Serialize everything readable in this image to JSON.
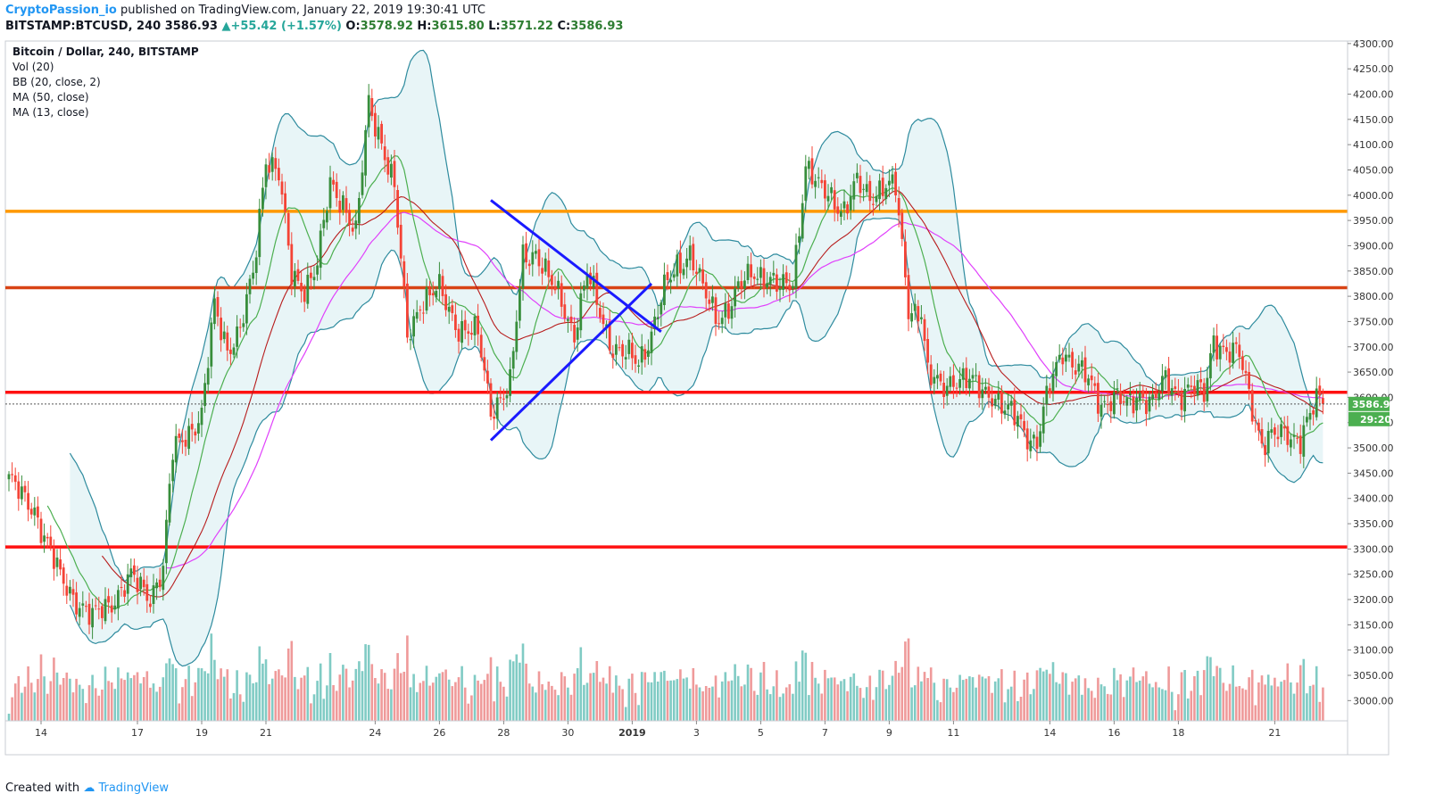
{
  "header": {
    "author": "CryptoPassion_io",
    "published": "published on TradingView.com, January 22, 2019 19:30:41 UTC",
    "symbol": "BITSTAMP:BTCUSD, 240",
    "last": "3586.93",
    "change_arrow": "▲",
    "change": "+55.42 (+1.57%)",
    "o_label": "O:",
    "o_value": "3578.92",
    "h_label": "H:",
    "h_value": "3615.80",
    "l_label": "L:",
    "l_value": "3571.22",
    "c_label": "C:",
    "c_value": "3586.93"
  },
  "legend": {
    "title": "Bitcoin / Dollar, 240, BITSTAMP",
    "items": [
      "Vol (20)",
      "BB (20, close, 2)",
      "MA (50, close)",
      "MA (13, close)"
    ]
  },
  "price_tag": {
    "value": "3586.93",
    "timer": "29:20",
    "color": "#4caf50"
  },
  "footer": {
    "created_with": "Created with",
    "brand": "TradingView"
  },
  "colors": {
    "up": "#4caf50",
    "up_body": "#388e3c",
    "down": "#f44336",
    "vol_up": "#80cbc4",
    "vol_down": "#ef9a9a",
    "bb": "#2e8b9e",
    "bb_fill": "#d9eef2",
    "ma_red": "#b71c1c",
    "ma_magenta": "#e040fb",
    "ma_green": "#4caf50",
    "orange_level": "#ff9800",
    "dark_red_level": "#d84315",
    "red_level": "#ff1111",
    "trend_lines": "#1a1aff"
  },
  "chart_data": {
    "type": "candlestick",
    "title": "Bitcoin / Dollar, 240, BITSTAMP",
    "ylim": [
      2960,
      4305
    ],
    "y_ticks": [
      3000,
      3050,
      3100,
      3150,
      3200,
      3250,
      3300,
      3350,
      3400,
      3450,
      3500,
      3550,
      3600,
      3650,
      3700,
      3750,
      3800,
      3850,
      3900,
      3950,
      4000,
      4050,
      4100,
      4150,
      4200,
      4250,
      4300
    ],
    "x_ticks": [
      "14",
      "17",
      "19",
      "21",
      "24",
      "26",
      "28",
      "30",
      "2019",
      "3",
      "5",
      "7",
      "9",
      "11",
      "14",
      "16",
      "18",
      "21"
    ],
    "x_tick_bar_index": [
      10,
      40,
      60,
      80,
      114,
      134,
      154,
      174,
      194,
      214,
      234,
      254,
      274,
      294,
      324,
      344,
      364,
      394
    ],
    "horizontal_levels": [
      {
        "price": 3968,
        "color": "orange"
      },
      {
        "price": 3817,
        "color": "dark-red"
      },
      {
        "price": 3610,
        "color": "red"
      },
      {
        "price": 3304,
        "color": "red"
      }
    ],
    "trend_lines": [
      {
        "from": [
          150,
          3990
        ],
        "to": [
          203,
          3730
        ]
      },
      {
        "from": [
          150,
          3515
        ],
        "to": [
          200,
          3825
        ]
      }
    ],
    "price_anchors": [
      [
        0,
        3440
      ],
      [
        4,
        3400
      ],
      [
        8,
        3380
      ],
      [
        12,
        3310
      ],
      [
        16,
        3240
      ],
      [
        20,
        3210
      ],
      [
        26,
        3160
      ],
      [
        32,
        3200
      ],
      [
        38,
        3240
      ],
      [
        44,
        3210
      ],
      [
        48,
        3260
      ],
      [
        51,
        3490
      ],
      [
        55,
        3530
      ],
      [
        60,
        3560
      ],
      [
        64,
        3780
      ],
      [
        68,
        3700
      ],
      [
        72,
        3730
      ],
      [
        76,
        3840
      ],
      [
        80,
        4080
      ],
      [
        84,
        4040
      ],
      [
        88,
        3840
      ],
      [
        92,
        3820
      ],
      [
        96,
        3860
      ],
      [
        100,
        4020
      ],
      [
        104,
        3990
      ],
      [
        108,
        3920
      ],
      [
        112,
        4180
      ],
      [
        116,
        4110
      ],
      [
        120,
        4010
      ],
      [
        124,
        3720
      ],
      [
        128,
        3790
      ],
      [
        134,
        3810
      ],
      [
        140,
        3740
      ],
      [
        146,
        3720
      ],
      [
        150,
        3580
      ],
      [
        156,
        3620
      ],
      [
        160,
        3880
      ],
      [
        164,
        3890
      ],
      [
        168,
        3830
      ],
      [
        172,
        3790
      ],
      [
        176,
        3730
      ],
      [
        180,
        3840
      ],
      [
        184,
        3770
      ],
      [
        188,
        3700
      ],
      [
        192,
        3680
      ],
      [
        196,
        3670
      ],
      [
        200,
        3730
      ],
      [
        204,
        3810
      ],
      [
        208,
        3860
      ],
      [
        212,
        3890
      ],
      [
        216,
        3810
      ],
      [
        220,
        3760
      ],
      [
        224,
        3780
      ],
      [
        228,
        3820
      ],
      [
        232,
        3850
      ],
      [
        236,
        3840
      ],
      [
        240,
        3810
      ],
      [
        244,
        3830
      ],
      [
        248,
        4060
      ],
      [
        252,
        4010
      ],
      [
        256,
        4000
      ],
      [
        260,
        3970
      ],
      [
        264,
        4020
      ],
      [
        268,
        4000
      ],
      [
        272,
        4020
      ],
      [
        276,
        4010
      ],
      [
        280,
        3780
      ],
      [
        284,
        3770
      ],
      [
        286,
        3640
      ],
      [
        290,
        3620
      ],
      [
        294,
        3640
      ],
      [
        298,
        3630
      ],
      [
        302,
        3620
      ],
      [
        306,
        3610
      ],
      [
        310,
        3570
      ],
      [
        314,
        3560
      ],
      [
        318,
        3520
      ],
      [
        320,
        3510
      ],
      [
        324,
        3620
      ],
      [
        328,
        3700
      ],
      [
        332,
        3660
      ],
      [
        336,
        3630
      ],
      [
        340,
        3590
      ],
      [
        344,
        3600
      ],
      [
        348,
        3580
      ],
      [
        352,
        3610
      ],
      [
        356,
        3590
      ],
      [
        360,
        3630
      ],
      [
        364,
        3610
      ],
      [
        368,
        3620
      ],
      [
        372,
        3600
      ],
      [
        375,
        3720
      ],
      [
        379,
        3690
      ],
      [
        383,
        3680
      ],
      [
        386,
        3610
      ],
      [
        390,
        3510
      ],
      [
        394,
        3520
      ],
      [
        398,
        3530
      ],
      [
        402,
        3520
      ],
      [
        405,
        3560
      ],
      [
        407,
        3590
      ]
    ],
    "last_price": 3586.93
  }
}
